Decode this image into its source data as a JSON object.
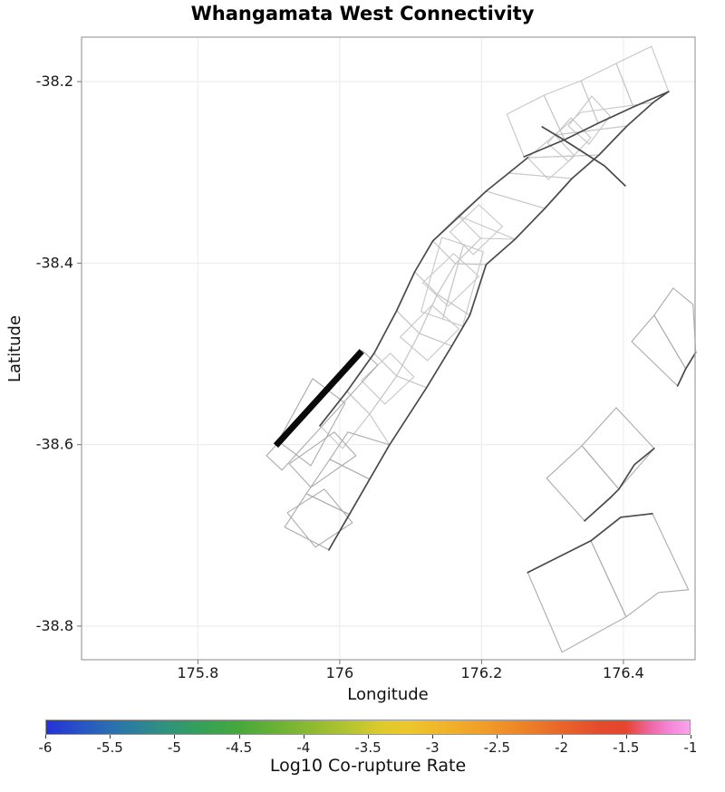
{
  "title": "Whangamata West Connectivity",
  "axes": {
    "x": {
      "label": "Longitude",
      "range": [
        175.636,
        176.501
      ],
      "ticks": [
        175.8,
        176.0,
        176.2,
        176.4
      ],
      "tick_labels": [
        "175.8",
        "176",
        "176.2",
        "176.4"
      ]
    },
    "y": {
      "label": "Latitude",
      "range": [
        -38.837,
        -38.151
      ],
      "ticks": [
        -38.2,
        -38.4,
        -38.6,
        -38.8
      ],
      "tick_labels": [
        "-38.2",
        "-38.4",
        "-38.6",
        "-38.8"
      ]
    }
  },
  "colorbar": {
    "label": "Log10 Co-rupture Rate",
    "min": -6,
    "max": -1,
    "tick_labels": [
      "-6",
      "-5.5",
      "-5",
      "-4.5",
      "-4",
      "-3.5",
      "-3",
      "-2.5",
      "-2",
      "-1.5",
      "-1"
    ],
    "gradient": [
      [
        0.0,
        "#2432d8"
      ],
      [
        0.06,
        "#2858c3"
      ],
      [
        0.12,
        "#2b79a6"
      ],
      [
        0.18,
        "#2f9180"
      ],
      [
        0.24,
        "#35a058"
      ],
      [
        0.3,
        "#47a83c"
      ],
      [
        0.36,
        "#6cb135"
      ],
      [
        0.42,
        "#93bb31"
      ],
      [
        0.48,
        "#bcc52e"
      ],
      [
        0.52,
        "#ddca2d"
      ],
      [
        0.56,
        "#ecc72b"
      ],
      [
        0.62,
        "#f1b32a"
      ],
      [
        0.68,
        "#f19d28"
      ],
      [
        0.74,
        "#ee8328"
      ],
      [
        0.8,
        "#e9662a"
      ],
      [
        0.86,
        "#e44b2c"
      ],
      [
        0.9,
        "#e4452e"
      ],
      [
        0.94,
        "#ee68a8"
      ],
      [
        0.97,
        "#f587d8"
      ],
      [
        1.0,
        "#f8a4ec"
      ]
    ]
  },
  "chart_data": {
    "type": "line",
    "subtype": "fault-network-map",
    "title": "Whangamata West Connectivity",
    "xlabel": "Longitude",
    "ylabel": "Latitude",
    "xlim": [
      175.636,
      176.501
    ],
    "ylim": [
      -38.837,
      -38.151
    ],
    "grid": true,
    "highlight_segment": {
      "color": "#0a0a0a",
      "points": [
        [
          175.91,
          -38.601
        ],
        [
          176.031,
          -38.497
        ]
      ]
    },
    "fault_patches_light": [
      [
        [
          176.2357,
          -38.2359
        ],
        [
          176.2879,
          -38.215
        ],
        [
          176.3172,
          -38.2639
        ],
        [
          176.2599,
          -38.2828
        ]
      ],
      [
        [
          176.2879,
          -38.215
        ],
        [
          176.3401,
          -38.199
        ],
        [
          176.3643,
          -38.2459
        ],
        [
          176.3172,
          -38.2639
        ]
      ],
      [
        [
          176.3401,
          -38.199
        ],
        [
          176.3898,
          -38.18
        ],
        [
          176.414,
          -38.2279
        ],
        [
          176.3643,
          -38.2459
        ]
      ],
      [
        [
          176.3898,
          -38.18
        ],
        [
          176.4395,
          -38.1611
        ],
        [
          176.4637,
          -38.211
        ],
        [
          176.414,
          -38.2279
        ]
      ],
      [
        [
          176.3223,
          -38.2489
        ],
        [
          176.3554,
          -38.216
        ],
        [
          176.3809,
          -38.2379
        ],
        [
          176.3516,
          -38.2689
        ]
      ],
      [
        [
          176.293,
          -38.2679
        ],
        [
          176.3261,
          -38.2399
        ],
        [
          176.3541,
          -38.2619
        ],
        [
          176.3223,
          -38.2878
        ]
      ],
      [
        [
          176.265,
          -38.2838
        ],
        [
          176.3032,
          -38.2589
        ],
        [
          176.3312,
          -38.2818
        ],
        [
          176.2943,
          -38.3078
        ]
      ],
      [
        [
          176.1669,
          -38.3477
        ],
        [
          176.2064,
          -38.3208
        ],
        [
          176.2892,
          -38.3397
        ],
        [
          176.2471,
          -38.3737
        ]
      ],
      [
        [
          176.2064,
          -38.3208
        ],
        [
          176.2382,
          -38.3008
        ],
        [
          176.3274,
          -38.3068
        ],
        [
          176.2892,
          -38.3397
        ]
      ],
      [
        [
          176.2382,
          -38.3008
        ],
        [
          176.265,
          -38.2838
        ],
        [
          176.3656,
          -38.2808
        ],
        [
          176.3274,
          -38.3068
        ]
      ],
      [
        [
          176.265,
          -38.2838
        ],
        [
          176.3032,
          -38.2589
        ],
        [
          176.4051,
          -38.2489
        ],
        [
          176.3656,
          -38.2808
        ]
      ],
      [
        [
          176.3032,
          -38.2589
        ],
        [
          176.3401,
          -38.2339
        ],
        [
          176.442,
          -38.223
        ],
        [
          176.4051,
          -38.2489
        ]
      ],
      [
        [
          175.972,
          -38.5792
        ],
        [
          176.0102,
          -38.5413
        ],
        [
          176.042,
          -38.5663
        ],
        [
          176.0038,
          -38.6042
        ]
      ],
      [
        [
          176.0102,
          -38.5413
        ],
        [
          176.0484,
          -38.4994
        ],
        [
          176.0803,
          -38.5244
        ],
        [
          176.042,
          -38.5663
        ]
      ],
      [
        [
          176.0484,
          -38.4994
        ],
        [
          176.0803,
          -38.4525
        ],
        [
          176.1121,
          -38.4774
        ],
        [
          176.0803,
          -38.5244
        ]
      ],
      [
        [
          176.0803,
          -38.4525
        ],
        [
          176.1057,
          -38.4096
        ],
        [
          176.1376,
          -38.4345
        ],
        [
          176.1121,
          -38.4774
        ]
      ],
      [
        [
          176.1057,
          -38.4096
        ],
        [
          176.1312,
          -38.3756
        ],
        [
          176.1631,
          -38.4006
        ],
        [
          176.1376,
          -38.4345
        ]
      ],
      [
        [
          176.1312,
          -38.3756
        ],
        [
          176.1669,
          -38.3477
        ],
        [
          176.1987,
          -38.3727
        ],
        [
          176.1631,
          -38.4006
        ]
      ],
      [
        [
          176.042,
          -38.5663
        ],
        [
          176.0803,
          -38.5244
        ],
        [
          176.1223,
          -38.5373
        ],
        [
          176.0701,
          -38.6002
        ]
      ],
      [
        [
          176.0803,
          -38.5244
        ],
        [
          176.1121,
          -38.4774
        ],
        [
          176.158,
          -38.4914
        ],
        [
          176.1223,
          -38.5373
        ]
      ],
      [
        [
          176.1121,
          -38.4774
        ],
        [
          176.1376,
          -38.4345
        ],
        [
          176.1834,
          -38.4575
        ],
        [
          176.158,
          -38.4914
        ]
      ],
      [
        [
          176.1376,
          -38.4345
        ],
        [
          176.1631,
          -38.4006
        ],
        [
          176.2064,
          -38.4016
        ],
        [
          176.1834,
          -38.4575
        ]
      ],
      [
        [
          176.1631,
          -38.4006
        ],
        [
          176.1987,
          -38.3727
        ],
        [
          176.2471,
          -38.3737
        ],
        [
          176.2064,
          -38.4016
        ]
      ],
      [
        [
          176.0854,
          -38.4814
        ],
        [
          176.1299,
          -38.4465
        ],
        [
          176.1682,
          -38.4724
        ],
        [
          176.1236,
          -38.5074
        ]
      ],
      [
        [
          176.1172,
          -38.4216
        ],
        [
          176.1605,
          -38.3896
        ],
        [
          176.1962,
          -38.4146
        ],
        [
          176.1529,
          -38.4475
        ]
      ],
      [
        [
          176.1554,
          -38.3657
        ],
        [
          176.1962,
          -38.3357
        ],
        [
          176.2293,
          -38.3597
        ],
        [
          176.1885,
          -38.3906
        ]
      ],
      [
        [
          176.0306,
          -38.5293
        ],
        [
          176.0713,
          -38.4994
        ],
        [
          176.1045,
          -38.5254
        ],
        [
          176.0637,
          -38.5553
        ]
      ],
      [
        [
          176.1439,
          -38.3717
        ],
        [
          176.1745,
          -38.3796
        ],
        [
          176.1452,
          -38.4615
        ],
        [
          176.1146,
          -38.4535
        ]
      ],
      [
        [
          176.1745,
          -38.3796
        ],
        [
          176.2025,
          -38.3876
        ],
        [
          176.1732,
          -38.4695
        ],
        [
          176.1452,
          -38.4615
        ]
      ]
    ],
    "fault_patches_mid": [
      [
        [
          175.8968,
          -38.6122
        ],
        [
          176.0318,
          -38.4964
        ],
        [
          176.0535,
          -38.5124
        ],
        [
          175.9185,
          -38.6281
        ]
      ],
      [
        [
          175.9134,
          -38.5962
        ],
        [
          175.9618,
          -38.5273
        ],
        [
          176.0076,
          -38.5543
        ],
        [
          175.9592,
          -38.6232
        ]
      ],
      [
        [
          175.9287,
          -38.6212
        ],
        [
          175.9924,
          -38.5862
        ],
        [
          176.0229,
          -38.6122
        ],
        [
          175.9592,
          -38.6471
        ]
      ],
      [
        [
          176.0115,
          -38.5862
        ],
        [
          176.0701,
          -38.6002
        ],
        [
          176.042,
          -38.6381
        ],
        [
          175.986,
          -38.6162
        ]
      ],
      [
        [
          175.986,
          -38.6162
        ],
        [
          176.042,
          -38.6381
        ],
        [
          176.014,
          -38.677
        ],
        [
          175.9529,
          -38.6541
        ]
      ],
      [
        [
          175.9529,
          -38.6541
        ],
        [
          176.014,
          -38.677
        ],
        [
          175.9847,
          -38.716
        ],
        [
          175.9223,
          -38.691
        ]
      ],
      [
        [
          175.9261,
          -38.675
        ],
        [
          175.9783,
          -38.6491
        ],
        [
          176.0178,
          -38.686
        ],
        [
          175.9656,
          -38.713
        ]
      ],
      [
        [
          176.4433,
          -38.4575
        ],
        [
          176.4701,
          -38.4276
        ],
        [
          176.4981,
          -38.4455
        ],
        [
          176.5019,
          -38.4984
        ],
        [
          176.4879,
          -38.5164
        ]
      ],
      [
        [
          176.4115,
          -38.4864
        ],
        [
          176.4433,
          -38.4575
        ],
        [
          176.4879,
          -38.5164
        ],
        [
          176.4764,
          -38.5353
        ]
      ],
      [
        [
          176.2917,
          -38.6371
        ],
        [
          176.3414,
          -38.6012
        ],
        [
          176.3936,
          -38.6491
        ],
        [
          176.3452,
          -38.684
        ]
      ],
      [
        [
          176.3414,
          -38.6012
        ],
        [
          176.3898,
          -38.5593
        ],
        [
          176.4433,
          -38.6042
        ],
        [
          176.3936,
          -38.6491
        ]
      ],
      [
        [
          176.265,
          -38.7409
        ],
        [
          176.3541,
          -38.706
        ],
        [
          176.4038,
          -38.7898
        ],
        [
          176.3134,
          -38.8287
        ]
      ],
      [
        [
          176.3541,
          -38.706
        ],
        [
          176.3962,
          -38.68
        ],
        [
          176.4408,
          -38.676
        ],
        [
          176.4917,
          -38.7599
        ],
        [
          176.4497,
          -38.7629
        ],
        [
          176.4038,
          -38.7898
        ]
      ]
    ],
    "fault_traces": [
      [
        [
          175.972,
          -38.5792
        ],
        [
          176.0102,
          -38.5413
        ],
        [
          176.0484,
          -38.4994
        ],
        [
          176.0803,
          -38.4525
        ],
        [
          176.1057,
          -38.4096
        ],
        [
          176.1312,
          -38.3756
        ],
        [
          176.1694,
          -38.3477
        ],
        [
          176.2064,
          -38.3208
        ],
        [
          176.2382,
          -38.3008
        ],
        [
          176.265,
          -38.2838
        ]
      ],
      [
        [
          175.9847,
          -38.716
        ],
        [
          176.0701,
          -38.6002
        ],
        [
          176.1223,
          -38.5373
        ],
        [
          176.158,
          -38.4914
        ],
        [
          176.1834,
          -38.4575
        ],
        [
          176.2064,
          -38.4016
        ],
        [
          176.2471,
          -38.3737
        ],
        [
          176.2892,
          -38.3397
        ],
        [
          176.3274,
          -38.3068
        ],
        [
          176.3656,
          -38.2808
        ],
        [
          176.4051,
          -38.2489
        ],
        [
          176.442,
          -38.223
        ],
        [
          176.4637,
          -38.211
        ]
      ],
      [
        [
          176.2599,
          -38.2828
        ],
        [
          176.3172,
          -38.2639
        ],
        [
          176.3643,
          -38.2459
        ],
        [
          176.414,
          -38.2279
        ],
        [
          176.4637,
          -38.211
        ]
      ],
      [
        [
          176.2854,
          -38.2499
        ],
        [
          176.3134,
          -38.2629
        ],
        [
          176.3732,
          -38.2928
        ],
        [
          176.4025,
          -38.3148
        ]
      ],
      [
        [
          176.5019,
          -38.4984
        ],
        [
          176.4879,
          -38.5164
        ],
        [
          176.4764,
          -38.5353
        ]
      ],
      [
        [
          176.4433,
          -38.6042
        ],
        [
          176.4153,
          -38.6222
        ],
        [
          176.3936,
          -38.6491
        ],
        [
          176.3809,
          -38.6591
        ],
        [
          176.3452,
          -38.684
        ]
      ],
      [
        [
          176.265,
          -38.7409
        ],
        [
          176.3541,
          -38.706
        ],
        [
          176.3962,
          -38.68
        ],
        [
          176.4408,
          -38.676
        ]
      ]
    ]
  },
  "colors": {
    "background": "#ffffff",
    "grid": "#ececec",
    "frame": "#a6a6a6",
    "patch_light": "#c6c6c6",
    "patch_mid": "#ababab",
    "trace": "#4a4a4a",
    "highlight": "#0a0a0a",
    "text": "#1a1a1a"
  }
}
